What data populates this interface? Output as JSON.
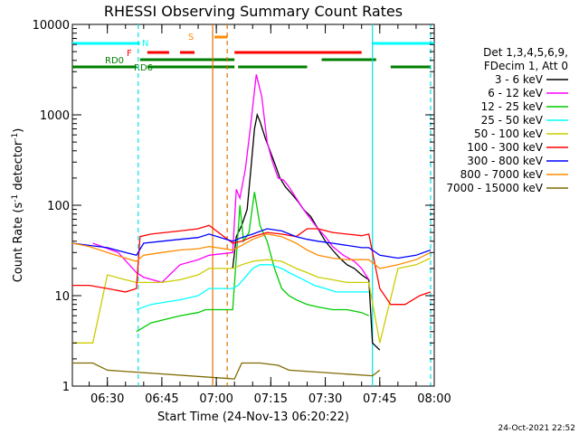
{
  "chart_data": {
    "type": "line",
    "title": "RHESSI Observing Summary Count Rates",
    "xlabel": "Start Time (24-Nov-13 06:20:22)",
    "ylabel_main": "Count Rate (s",
    "ylabel_exp": "-1",
    "ylabel_rest": " detector",
    "ylabel_exp2": "-1",
    "ylabel_close": ")",
    "y_scale": "log",
    "ylim": [
      1,
      10000
    ],
    "xlim": [
      "06:20:22",
      "08:00:00"
    ],
    "x_ticks": [
      "06:30",
      "06:45",
      "07:00",
      "07:15",
      "07:30",
      "07:45",
      "08:00"
    ],
    "y_ticks": [
      "1",
      "10",
      "100",
      "1000",
      "10000"
    ],
    "footer_date": "24-Oct-2021 22:52",
    "legend_header_1": "Det 1,3,4,5,6,9,",
    "legend_header_2": "FDecim 1, Att 0",
    "legend_placement": "right",
    "flag_labels": {
      "N": "N",
      "F": "F",
      "S": "S",
      "RD0": "RD0",
      "RD6": "RD6"
    },
    "flags": [
      {
        "label": "N",
        "color": "#00ffff",
        "segments": [
          [
            "06:20:22",
            "06:39:00"
          ],
          [
            "07:43:00",
            "08:00:00"
          ]
        ]
      },
      {
        "label": "F",
        "color": "#ff0000",
        "segments": [
          [
            "06:41:00",
            "06:47:00"
          ],
          [
            "06:50:00",
            "06:54:00"
          ],
          [
            "07:05:00",
            "07:40:00"
          ]
        ]
      },
      {
        "label": "S",
        "color": "#ff8c00",
        "segments": [
          [
            "06:59:30",
            "07:03:00"
          ]
        ]
      },
      {
        "label": "RD0",
        "color": "#007f00",
        "segments": [
          [
            "06:39:00",
            "07:05:00"
          ],
          [
            "07:29:00",
            "07:44:00"
          ]
        ]
      },
      {
        "label": "RD6",
        "color": "#007f00",
        "segments": [
          [
            "06:20:22",
            "06:38:00"
          ],
          [
            "06:41:00",
            "07:05:00"
          ],
          [
            "07:06:00",
            "07:25:00"
          ],
          [
            "07:48:00",
            "07:59:00"
          ]
        ]
      }
    ],
    "vlines": [
      {
        "time": "06:38:30",
        "color": "#00e0e0",
        "style": "dashed"
      },
      {
        "time": "06:59:00",
        "color": "#e07000",
        "style": "solid"
      },
      {
        "time": "07:03:00",
        "color": "#e07000",
        "style": "dashed"
      },
      {
        "time": "07:43:00",
        "color": "#00e0e0",
        "style": "solid"
      },
      {
        "time": "07:59:00",
        "color": "#00e0e0",
        "style": "dashed"
      }
    ],
    "series": [
      {
        "name": "3 - 6 keV",
        "color": "#000000",
        "points": [
          [
            "07:04:30",
            20
          ],
          [
            "07:05:30",
            45
          ],
          [
            "07:07:00",
            60
          ],
          [
            "07:08:30",
            90
          ],
          [
            "07:09:30",
            250
          ],
          [
            "07:10:30",
            700
          ],
          [
            "07:11:15",
            1000
          ],
          [
            "07:12:00",
            850
          ],
          [
            "07:13:30",
            550
          ],
          [
            "07:15:00",
            380
          ],
          [
            "07:16:30",
            260
          ],
          [
            "07:17:30",
            200
          ],
          [
            "07:19:00",
            160
          ],
          [
            "07:21:00",
            130
          ],
          [
            "07:22:30",
            110
          ],
          [
            "07:24:00",
            90
          ],
          [
            "07:26:00",
            75
          ],
          [
            "07:28:00",
            55
          ],
          [
            "07:30:00",
            40
          ],
          [
            "07:32:00",
            32
          ],
          [
            "07:34:00",
            26
          ],
          [
            "07:36:00",
            22
          ],
          [
            "07:38:00",
            20
          ],
          [
            "07:40:00",
            17
          ],
          [
            "07:42:00",
            15
          ],
          [
            "07:43:00",
            3
          ],
          [
            "07:45:00",
            2.5
          ]
        ]
      },
      {
        "name": "6 - 12 keV",
        "color": "#ff00ff",
        "points": [
          [
            "06:26:00",
            38
          ],
          [
            "06:33:00",
            30
          ],
          [
            "06:38:00",
            18
          ],
          [
            "06:40:00",
            16
          ],
          [
            "06:45:00",
            14
          ],
          [
            "06:50:00",
            22
          ],
          [
            "06:55:00",
            25
          ],
          [
            "06:58:00",
            28
          ],
          [
            "07:04:30",
            30
          ],
          [
            "07:05:30",
            150
          ],
          [
            "07:06:30",
            120
          ],
          [
            "07:08:00",
            250
          ],
          [
            "07:09:30",
            800
          ],
          [
            "07:11:00",
            2800
          ],
          [
            "07:12:30",
            1600
          ],
          [
            "07:14:00",
            500
          ],
          [
            "07:15:30",
            300
          ],
          [
            "07:17:00",
            200
          ],
          [
            "07:18:30",
            190
          ],
          [
            "07:20:00",
            160
          ],
          [
            "07:22:00",
            120
          ],
          [
            "07:24:00",
            90
          ],
          [
            "07:26:00",
            70
          ],
          [
            "07:28:00",
            55
          ],
          [
            "07:30:00",
            45
          ],
          [
            "07:32:00",
            35
          ],
          [
            "07:35:00",
            28
          ],
          [
            "07:38:00",
            24
          ],
          [
            "07:40:00",
            20
          ],
          [
            "07:42:00",
            15
          ]
        ]
      },
      {
        "name": "12 - 25 keV",
        "color": "#00cc00",
        "points": [
          [
            "06:38:00",
            4
          ],
          [
            "06:42:00",
            5
          ],
          [
            "06:50:00",
            6
          ],
          [
            "06:55:00",
            6.5
          ],
          [
            "06:57:00",
            7
          ],
          [
            "07:04:30",
            7
          ],
          [
            "07:06:30",
            100
          ],
          [
            "07:07:30",
            40
          ],
          [
            "07:09:00",
            50
          ],
          [
            "07:10:30",
            140
          ],
          [
            "07:12:00",
            60
          ],
          [
            "07:14:00",
            40
          ],
          [
            "07:16:00",
            20
          ],
          [
            "07:18:00",
            12
          ],
          [
            "07:20:00",
            10
          ],
          [
            "07:22:00",
            9
          ],
          [
            "07:25:00",
            8
          ],
          [
            "07:28:00",
            7.5
          ],
          [
            "07:32:00",
            7
          ],
          [
            "07:36:00",
            7
          ],
          [
            "07:40:00",
            6.5
          ],
          [
            "07:42:00",
            6
          ]
        ]
      },
      {
        "name": "25 - 50 keV",
        "color": "#00ffff",
        "points": [
          [
            "06:38:00",
            7
          ],
          [
            "06:42:00",
            8
          ],
          [
            "06:46:00",
            8.5
          ],
          [
            "06:50:00",
            9
          ],
          [
            "06:55:00",
            10
          ],
          [
            "06:58:00",
            12
          ],
          [
            "07:04:30",
            12
          ],
          [
            "07:06:00",
            13
          ],
          [
            "07:08:00",
            16
          ],
          [
            "07:10:00",
            20
          ],
          [
            "07:12:00",
            22
          ],
          [
            "07:15:00",
            22
          ],
          [
            "07:18:00",
            20
          ],
          [
            "07:20:00",
            18
          ],
          [
            "07:24:00",
            15
          ],
          [
            "07:27:00",
            13
          ],
          [
            "07:30:00",
            12
          ],
          [
            "07:33:00",
            11
          ],
          [
            "07:36:00",
            11
          ],
          [
            "07:40:00",
            11
          ],
          [
            "07:42:00",
            11
          ]
        ]
      },
      {
        "name": "50 - 100 keV",
        "color": "#cccc00",
        "points": [
          [
            "06:20:22",
            3
          ],
          [
            "06:26:00",
            3
          ],
          [
            "06:30:00",
            17
          ],
          [
            "06:35:00",
            15
          ],
          [
            "06:38:00",
            14
          ],
          [
            "06:40:00",
            14
          ],
          [
            "06:45:00",
            14
          ],
          [
            "06:50:00",
            15
          ],
          [
            "06:55:00",
            17
          ],
          [
            "06:58:00",
            20
          ],
          [
            "07:04:30",
            20
          ],
          [
            "07:07:00",
            22
          ],
          [
            "07:10:00",
            24
          ],
          [
            "07:14:00",
            25
          ],
          [
            "07:18:00",
            24
          ],
          [
            "07:22:00",
            20
          ],
          [
            "07:25:00",
            18
          ],
          [
            "07:28:00",
            16
          ],
          [
            "07:32:00",
            15
          ],
          [
            "07:36:00",
            14
          ],
          [
            "07:40:00",
            14
          ],
          [
            "07:42:00",
            14
          ],
          [
            "07:45:00",
            3
          ],
          [
            "07:50:00",
            20
          ],
          [
            "07:55:00",
            22
          ],
          [
            "07:59:00",
            26
          ]
        ]
      },
      {
        "name": "100 - 300 keV",
        "color": "#ff0000",
        "points": [
          [
            "06:20:22",
            13
          ],
          [
            "06:25:00",
            13
          ],
          [
            "06:30:00",
            12
          ],
          [
            "06:35:00",
            11
          ],
          [
            "06:38:00",
            12
          ],
          [
            "06:39:00",
            45
          ],
          [
            "06:42:00",
            48
          ],
          [
            "06:46:00",
            50
          ],
          [
            "06:50:00",
            52
          ],
          [
            "06:55:00",
            55
          ],
          [
            "06:58:00",
            60
          ],
          [
            "07:04:30",
            38
          ],
          [
            "07:07:00",
            40
          ],
          [
            "07:10:00",
            45
          ],
          [
            "07:14:00",
            50
          ],
          [
            "07:18:00",
            48
          ],
          [
            "07:22:00",
            45
          ],
          [
            "07:25:00",
            55
          ],
          [
            "07:28:00",
            55
          ],
          [
            "07:32:00",
            50
          ],
          [
            "07:36:00",
            48
          ],
          [
            "07:40:00",
            46
          ],
          [
            "07:42:00",
            48
          ],
          [
            "07:45:00",
            12
          ],
          [
            "07:48:00",
            8
          ],
          [
            "07:52:00",
            8
          ],
          [
            "07:56:00",
            10
          ],
          [
            "07:59:00",
            11
          ]
        ]
      },
      {
        "name": "300 - 800 keV",
        "color": "#0000ff",
        "points": [
          [
            "06:20:22",
            38
          ],
          [
            "06:25:00",
            36
          ],
          [
            "06:30:00",
            34
          ],
          [
            "06:35:00",
            30
          ],
          [
            "06:38:00",
            28
          ],
          [
            "06:40:00",
            38
          ],
          [
            "06:45:00",
            40
          ],
          [
            "06:50:00",
            42
          ],
          [
            "06:55:00",
            44
          ],
          [
            "06:58:00",
            48
          ],
          [
            "07:04:30",
            40
          ],
          [
            "07:07:00",
            44
          ],
          [
            "07:10:00",
            48
          ],
          [
            "07:14:00",
            55
          ],
          [
            "07:18:00",
            52
          ],
          [
            "07:22:00",
            45
          ],
          [
            "07:25:00",
            42
          ],
          [
            "07:28:00",
            40
          ],
          [
            "07:32:00",
            38
          ],
          [
            "07:36:00",
            36
          ],
          [
            "07:40:00",
            34
          ],
          [
            "07:42:00",
            34
          ],
          [
            "07:45:00",
            28
          ],
          [
            "07:50:00",
            26
          ],
          [
            "07:55:00",
            28
          ],
          [
            "07:59:00",
            32
          ]
        ]
      },
      {
        "name": "800 - 7000 keV",
        "color": "#ff8c00",
        "points": [
          [
            "06:20:22",
            38
          ],
          [
            "06:25:00",
            35
          ],
          [
            "06:30:00",
            30
          ],
          [
            "06:35:00",
            26
          ],
          [
            "06:38:00",
            24
          ],
          [
            "06:40:00",
            28
          ],
          [
            "06:45:00",
            30
          ],
          [
            "06:50:00",
            32
          ],
          [
            "06:55:00",
            33
          ],
          [
            "06:58:00",
            35
          ],
          [
            "07:04:30",
            32
          ],
          [
            "07:07:00",
            36
          ],
          [
            "07:10:00",
            42
          ],
          [
            "07:14:00",
            48
          ],
          [
            "07:18:00",
            45
          ],
          [
            "07:22:00",
            38
          ],
          [
            "07:25:00",
            32
          ],
          [
            "07:28:00",
            28
          ],
          [
            "07:32:00",
            26
          ],
          [
            "07:36:00",
            25
          ],
          [
            "07:40:00",
            25
          ],
          [
            "07:42:00",
            25
          ],
          [
            "07:45:00",
            20
          ],
          [
            "07:50:00",
            22
          ],
          [
            "07:55:00",
            25
          ],
          [
            "07:59:00",
            30
          ]
        ]
      },
      {
        "name": "7000 - 15000 keV",
        "color": "#7f6a00",
        "points": [
          [
            "06:20:22",
            1.8
          ],
          [
            "06:26:00",
            1.8
          ],
          [
            "06:30:00",
            1.5
          ],
          [
            "07:05:00",
            1.2
          ],
          [
            "07:07:00",
            1.8
          ],
          [
            "07:12:00",
            1.8
          ],
          [
            "07:17:00",
            1.7
          ],
          [
            "07:20:00",
            1.5
          ],
          [
            "07:43:00",
            1.3
          ],
          [
            "07:45:00",
            1.5
          ]
        ]
      }
    ]
  }
}
